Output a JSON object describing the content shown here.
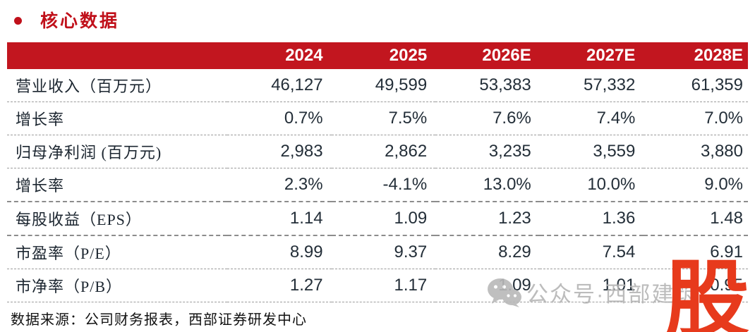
{
  "section": {
    "title": "核心数据",
    "bullet_color": "#c0101a",
    "title_color": "#c0101a"
  },
  "table": {
    "header_bg_color": "#c2161f",
    "header_text_color": "#ffffff",
    "columns": [
      "",
      "2024",
      "2025",
      "2026E",
      "2027E",
      "2028E"
    ],
    "rows": [
      {
        "label": "营业收入（百万元）",
        "values": [
          "46,127",
          "49,599",
          "53,383",
          "57,332",
          "61,359"
        ]
      },
      {
        "label": "增长率",
        "values": [
          "0.7%",
          "7.5%",
          "7.6%",
          "7.4%",
          "7.0%"
        ]
      },
      {
        "label": "归母净利润 (百万元)",
        "values": [
          "2,983",
          "2,862",
          "3,235",
          "3,559",
          "3,880"
        ]
      },
      {
        "label": "增长率",
        "values": [
          "2.3%",
          "-4.1%",
          "13.0%",
          "10.0%",
          "9.0%"
        ]
      },
      {
        "label": "每股收益（EPS）",
        "values": [
          "1.14",
          "1.09",
          "1.23",
          "1.36",
          "1.48"
        ]
      },
      {
        "label": "市盈率（P/E）",
        "values": [
          "8.99",
          "9.37",
          "8.29",
          "7.54",
          "6.91"
        ]
      },
      {
        "label": "市净率（P/B）",
        "values": [
          "1.27",
          "1.17",
          "1.09",
          "1.01",
          "0.95"
        ]
      }
    ]
  },
  "footer": {
    "source_text": "数据来源：公司财务报表，西部证券研发中心"
  },
  "watermark": {
    "icon": "wechat-icon",
    "text": "公众号·西部建筑",
    "text_color": "#b5b5b5",
    "big_glyph": "股",
    "big_glyph_color": "#e73a1c"
  }
}
